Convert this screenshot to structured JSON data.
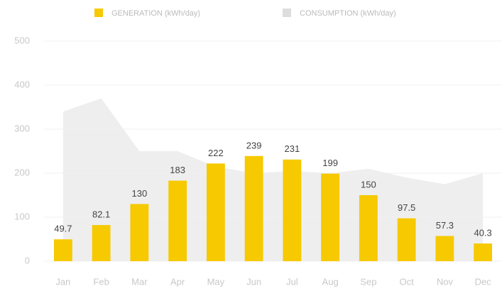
{
  "chart_data": {
    "type": "bar",
    "categories": [
      "Jan",
      "Feb",
      "Mar",
      "Apr",
      "May",
      "Jun",
      "Jul",
      "Aug",
      "Sep",
      "Oct",
      "Nov",
      "Dec"
    ],
    "series": [
      {
        "name": "GENERATION (kWh/day)",
        "color": "#f7c900",
        "type": "bar",
        "values": [
          49.7,
          82.1,
          130,
          183,
          222,
          239,
          231,
          199,
          150,
          97.5,
          57.3,
          40.3
        ]
      },
      {
        "name": "CONSUMPTION (kWh/day)",
        "color": "#eeeeee",
        "type": "area",
        "values": [
          340,
          370,
          250,
          250,
          215,
          200,
          205,
          200,
          210,
          190,
          175,
          200
        ]
      }
    ],
    "ylim": [
      0,
      500
    ],
    "yticks": [
      0,
      100,
      200,
      300,
      400,
      500
    ],
    "grid": true
  }
}
